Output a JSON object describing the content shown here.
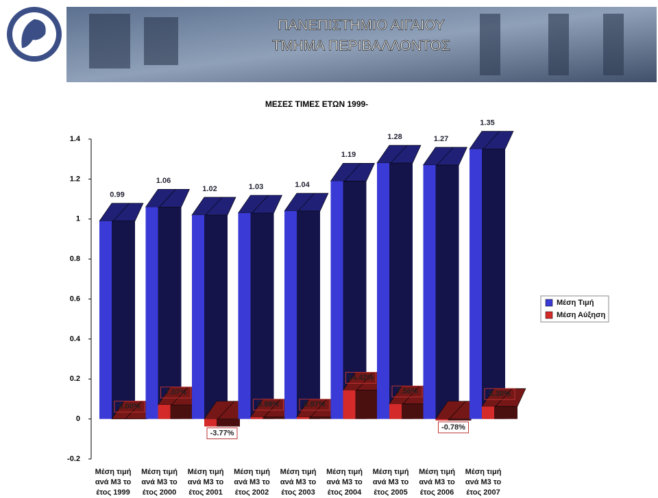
{
  "header": {
    "title": [
      "ΠΑΝΕΠΙΣΤΗΜΙΟ ΑΙΓΑΙΟΥ",
      "ΤΜΗΜΑ ΠΕΡΙΒΑΛΛΟΝΤΟΣ"
    ]
  },
  "chart_data": {
    "type": "bar",
    "title": "ΜΕΣΕΣ ΤΙΜΕΣ ΕΤΩΝ 1999-",
    "categories": [
      "Μέση τιμή ανά M3 το έτος 1999",
      "Μέση τιμή ανά M3 το έτος 2000",
      "Μέση τιμή ανά M3 το έτος 2001",
      "Μέση τιμή ανά M3 το έτος 2002",
      "Μέση τιμή ανά M3 το έτος 2003",
      "Μέση τιμή ανά M3 το έτος 2004",
      "Μέση τιμή ανά M3 το έτος 2005",
      "Μέση τιμή ανά M3 το έτος 2006",
      "Μέση τιμή ανά M3 το έτος 2007"
    ],
    "series": [
      {
        "name": "Μέση Τιμή",
        "color": "#3a3ad6",
        "values": [
          0.99,
          1.06,
          1.02,
          1.03,
          1.04,
          1.19,
          1.28,
          1.27,
          1.35
        ]
      },
      {
        "name": "Μέση Αύξηση",
        "color": "#d42a2a",
        "values": [
          0,
          0.0707,
          -0.0377,
          0.0098,
          0.0097,
          0.1442,
          0.0756,
          -0.0078,
          0.063
        ],
        "value_labels": [
          "0.00%",
          "7.07%",
          "-3.77%",
          "0.98%",
          "0.97%",
          "14.42%",
          "7.56%",
          "-0.78%",
          "6.30%"
        ]
      }
    ],
    "ylim": [
      -0.2,
      1.4
    ],
    "yticks": [
      -0.2,
      0,
      0.2,
      0.4,
      0.6,
      0.8,
      1,
      1.2,
      1.4
    ],
    "legend": "right"
  }
}
